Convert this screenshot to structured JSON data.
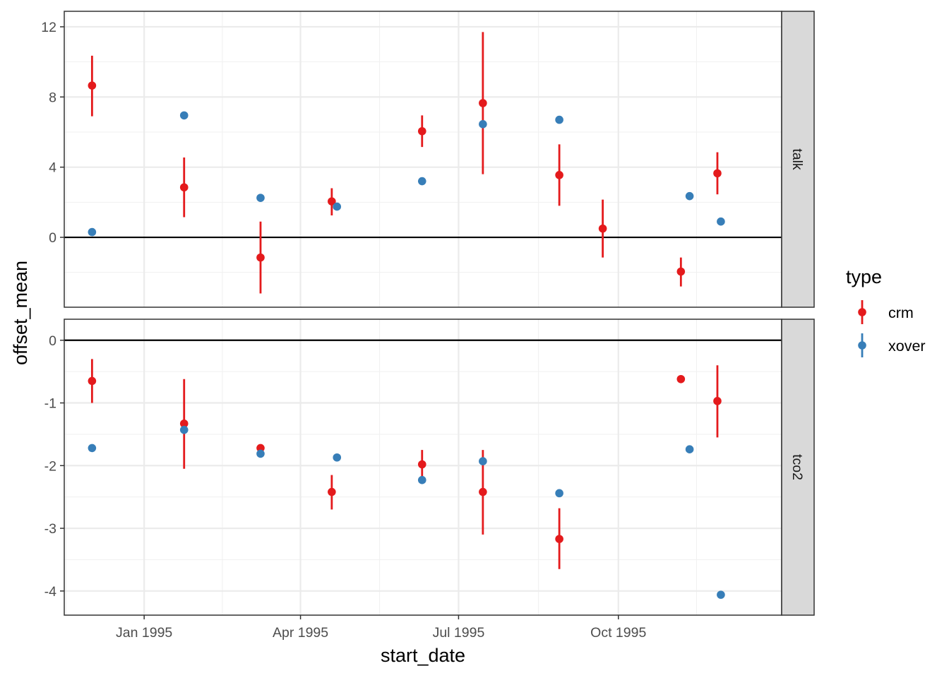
{
  "chart_data": {
    "type": "scatter",
    "title": "",
    "xlabel": "start_date",
    "ylabel": "offset_mean",
    "x_ticks": [
      {
        "date": "1995-01-01",
        "label": "Jan 1995"
      },
      {
        "date": "1995-04-01",
        "label": "Apr 1995"
      },
      {
        "date": "1995-07-01",
        "label": "Jul 1995"
      },
      {
        "date": "1995-10-01",
        "label": "Oct 1995"
      }
    ],
    "xlim": [
      "1994-11-16",
      "1996-01-03"
    ],
    "reference_line_y": 0,
    "grid": true,
    "legend": {
      "title": "type",
      "position": "right",
      "entries": [
        {
          "name": "crm",
          "color": "#E41A1C"
        },
        {
          "name": "xover",
          "color": "#377EB8"
        }
      ]
    },
    "panels": [
      {
        "label": "talk",
        "ylim": [
          -3.5,
          12.4
        ],
        "y_ticks": [
          0,
          4,
          8,
          12
        ],
        "y_tick_labels": [
          "0",
          "4",
          "8",
          "12"
        ],
        "series": [
          {
            "name": "crm",
            "color": "#E41A1C",
            "points": [
              {
                "x": "1994-12-02",
                "y": 8.65,
                "lo": 6.9,
                "hi": 10.35
              },
              {
                "x": "1995-01-24",
                "y": 2.85,
                "lo": 1.15,
                "hi": 4.55
              },
              {
                "x": "1995-03-09",
                "y": -1.15,
                "lo": -3.2,
                "hi": 0.9
              },
              {
                "x": "1995-04-19",
                "y": 2.05,
                "lo": 1.25,
                "hi": 2.8
              },
              {
                "x": "1995-06-10",
                "y": 6.05,
                "lo": 5.15,
                "hi": 6.95
              },
              {
                "x": "1995-07-15",
                "y": 7.65,
                "lo": 3.6,
                "hi": 11.7
              },
              {
                "x": "1995-08-28",
                "y": 3.55,
                "lo": 1.8,
                "hi": 5.3
              },
              {
                "x": "1995-09-22",
                "y": 0.5,
                "lo": -1.15,
                "hi": 2.15
              },
              {
                "x": "1995-11-06",
                "y": -1.95,
                "lo": -2.8,
                "hi": -1.15
              },
              {
                "x": "1995-11-27",
                "y": 3.65,
                "lo": 2.45,
                "hi": 4.85
              }
            ]
          },
          {
            "name": "xover",
            "color": "#377EB8",
            "points": [
              {
                "x": "1994-12-02",
                "y": 0.3
              },
              {
                "x": "1995-01-24",
                "y": 6.95
              },
              {
                "x": "1995-03-09",
                "y": 2.25
              },
              {
                "x": "1995-04-22",
                "y": 1.75
              },
              {
                "x": "1995-06-10",
                "y": 3.2
              },
              {
                "x": "1995-07-15",
                "y": 6.45
              },
              {
                "x": "1995-08-28",
                "y": 6.7
              },
              {
                "x": "1995-11-11",
                "y": 2.35
              },
              {
                "x": "1995-11-29",
                "y": 0.9
              }
            ]
          }
        ]
      },
      {
        "label": "tco2",
        "ylim": [
          -4.25,
          0.2
        ],
        "y_ticks": [
          0,
          -1,
          -2,
          -3,
          -4
        ],
        "y_tick_labels": [
          "0",
          "-1",
          "-2",
          "-3",
          "-4"
        ],
        "series": [
          {
            "name": "crm",
            "color": "#E41A1C",
            "points": [
              {
                "x": "1994-12-02",
                "y": -0.65,
                "lo": -1.0,
                "hi": -0.3
              },
              {
                "x": "1995-01-24",
                "y": -1.33,
                "lo": -2.05,
                "hi": -0.62
              },
              {
                "x": "1995-03-09",
                "y": -1.72
              },
              {
                "x": "1995-04-19",
                "y": -2.42,
                "lo": -2.7,
                "hi": -2.15
              },
              {
                "x": "1995-06-10",
                "y": -1.98,
                "lo": -2.2,
                "hi": -1.75
              },
              {
                "x": "1995-07-15",
                "y": -2.42,
                "lo": -3.1,
                "hi": -1.75
              },
              {
                "x": "1995-08-28",
                "y": -3.17,
                "lo": -3.65,
                "hi": -2.68
              },
              {
                "x": "1995-11-06",
                "y": -0.62
              },
              {
                "x": "1995-11-27",
                "y": -0.97,
                "lo": -1.55,
                "hi": -0.4
              }
            ]
          },
          {
            "name": "xover",
            "color": "#377EB8",
            "points": [
              {
                "x": "1994-12-02",
                "y": -1.72
              },
              {
                "x": "1995-01-24",
                "y": -1.43
              },
              {
                "x": "1995-03-09",
                "y": -1.81
              },
              {
                "x": "1995-04-22",
                "y": -1.87
              },
              {
                "x": "1995-06-10",
                "y": -2.23
              },
              {
                "x": "1995-07-15",
                "y": -1.93
              },
              {
                "x": "1995-08-28",
                "y": -2.44
              },
              {
                "x": "1995-11-11",
                "y": -1.74
              },
              {
                "x": "1995-11-29",
                "y": -4.06
              }
            ]
          }
        ]
      }
    ]
  }
}
